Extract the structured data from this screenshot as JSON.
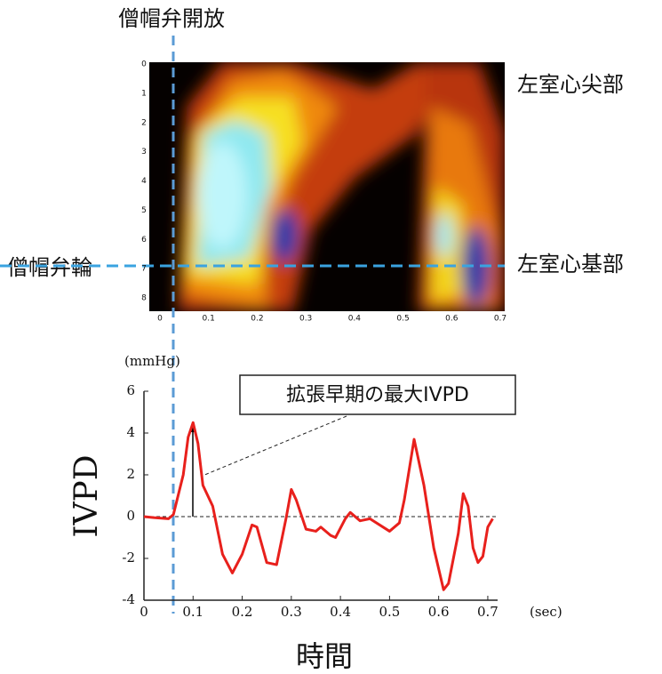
{
  "chart_data": [
    {
      "type": "heatmap",
      "annotations": [
        "僧帽弁開放",
        "左室心尖部",
        "左室心基部",
        "僧帽弁輪"
      ],
      "xlim": [
        0,
        0.7
      ],
      "xticks": [
        0,
        0.1,
        0.2,
        0.3,
        0.4,
        0.5,
        0.6,
        0.7
      ],
      "ylim": [
        0,
        8
      ],
      "yticks": [
        0,
        1,
        2,
        3,
        4,
        5,
        6,
        7,
        8
      ]
    },
    {
      "type": "line",
      "y_unit": "(mmHg)",
      "x_unit": "(sec)",
      "ylabel": "IVPD",
      "xlabel": "時間",
      "annotation": "拡張早期の最大IVPD",
      "x": [
        0,
        0.02,
        0.05,
        0.06,
        0.08,
        0.09,
        0.1,
        0.11,
        0.12,
        0.14,
        0.16,
        0.18,
        0.2,
        0.22,
        0.23,
        0.25,
        0.27,
        0.29,
        0.3,
        0.31,
        0.33,
        0.35,
        0.36,
        0.38,
        0.39,
        0.41,
        0.42,
        0.44,
        0.46,
        0.5,
        0.52,
        0.53,
        0.55,
        0.57,
        0.59,
        0.61,
        0.62,
        0.64,
        0.65,
        0.66,
        0.67,
        0.68,
        0.69,
        0.7,
        0.71
      ],
      "series": [
        {
          "color": "#e8201c",
          "values": [
            0,
            -0.05,
            -0.1,
            0.1,
            2.0,
            3.8,
            4.5,
            3.5,
            1.5,
            0.5,
            -1.8,
            -2.7,
            -1.8,
            -0.4,
            -0.5,
            -2.2,
            -2.3,
            0,
            1.3,
            0.8,
            -0.6,
            -0.7,
            -0.5,
            -0.9,
            -1.0,
            -0.1,
            0.2,
            -0.2,
            -0.1,
            -0.7,
            -0.3,
            0.8,
            3.7,
            1.5,
            -1.5,
            -3.5,
            -3.2,
            -0.8,
            1.1,
            0.5,
            -1.5,
            -2.2,
            -1.9,
            -0.5,
            -0.1
          ]
        }
      ],
      "xlim": [
        0,
        0.72
      ],
      "xticks": [
        0,
        0.1,
        0.2,
        0.3,
        0.4,
        0.5,
        0.6,
        0.7
      ],
      "ylim": [
        -4,
        6
      ],
      "yticks": [
        -4,
        -2,
        0,
        2,
        4,
        6
      ],
      "zero_line": true
    }
  ]
}
